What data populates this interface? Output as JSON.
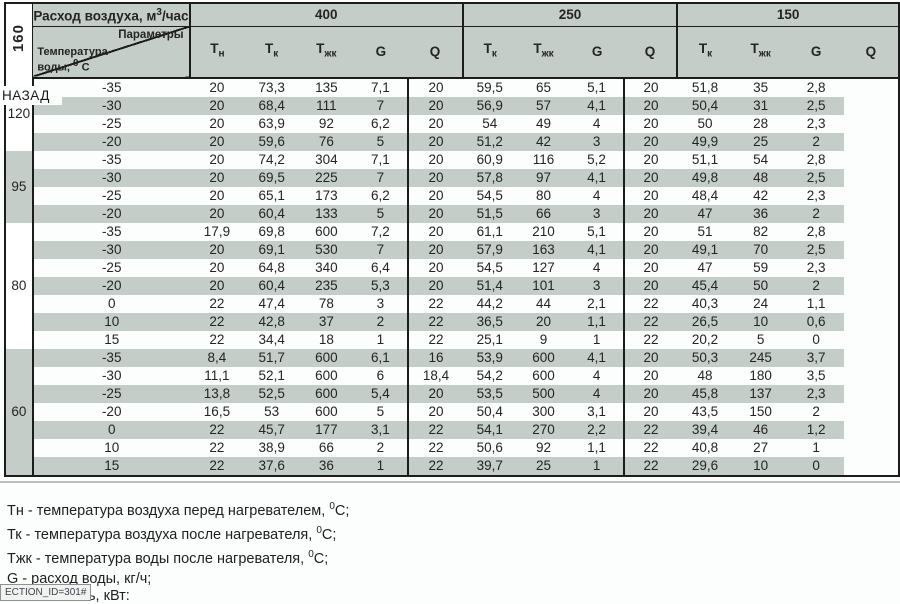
{
  "back_link": "НАЗАД",
  "table": {
    "row_band_label": "160",
    "airflow_label": {
      "before": "Расход воздуха, м",
      "sup": "3",
      "after": "/час"
    },
    "params_label": "Параметры",
    "water_temp_label": {
      "line1": "Температура",
      "line2_before": "воды, ",
      "line2_sup": "0",
      "line2_after": " С"
    },
    "colors": {
      "shade": "#c5cdc8",
      "border": "#1c1c1c"
    },
    "sections": [
      {
        "flow": "400",
        "columns": [
          {
            "m": "Т",
            "s": "н"
          },
          {
            "m": "Т",
            "s": "к"
          },
          {
            "m": "Т",
            "s": "жк"
          },
          {
            "m": "G",
            "s": ""
          },
          {
            "m": "Q",
            "s": ""
          }
        ]
      },
      {
        "flow": "250",
        "columns": [
          {
            "m": "Т",
            "s": "к"
          },
          {
            "m": "Т",
            "s": "жк"
          },
          {
            "m": "G",
            "s": ""
          },
          {
            "m": "Q",
            "s": ""
          }
        ]
      },
      {
        "flow": "150",
        "columns": [
          {
            "m": "Т",
            "s": "к"
          },
          {
            "m": "Т",
            "s": "жк"
          },
          {
            "m": "G",
            "s": ""
          },
          {
            "m": "Q",
            "s": ""
          }
        ]
      }
    ],
    "groups": [
      {
        "label": "120",
        "label_shaded": false,
        "rows": [
          {
            "shaded": false,
            "cells": [
              "-35",
              "20",
              "73,3",
              "135",
              "7,1",
              "20",
              "59,5",
              "65",
              "5,1",
              "20",
              "51,8",
              "35",
              "2,8"
            ]
          },
          {
            "shaded": true,
            "cells": [
              "-30",
              "20",
              "68,4",
              "111",
              "7",
              "20",
              "56,9",
              "57",
              "4,1",
              "20",
              "50,4",
              "31",
              "2,5"
            ]
          },
          {
            "shaded": false,
            "cells": [
              "-25",
              "20",
              "63,9",
              "92",
              "6,2",
              "20",
              "54",
              "49",
              "4",
              "20",
              "50",
              "28",
              "2,3"
            ]
          },
          {
            "shaded": true,
            "cells": [
              "-20",
              "20",
              "59,6",
              "76",
              "5",
              "20",
              "51,2",
              "42",
              "3",
              "20",
              "49,9",
              "25",
              "2"
            ]
          }
        ]
      },
      {
        "label": "95",
        "label_shaded": true,
        "rows": [
          {
            "shaded": false,
            "cells": [
              "-35",
              "20",
              "74,2",
              "304",
              "7,1",
              "20",
              "60,9",
              "116",
              "5,2",
              "20",
              "51,1",
              "54",
              "2,8"
            ]
          },
          {
            "shaded": true,
            "cells": [
              "-30",
              "20",
              "69,5",
              "225",
              "7",
              "20",
              "57,8",
              "97",
              "4,1",
              "20",
              "49,8",
              "48",
              "2,5"
            ]
          },
          {
            "shaded": false,
            "cells": [
              "-25",
              "20",
              "65,1",
              "173",
              "6,2",
              "20",
              "54,5",
              "80",
              "4",
              "20",
              "48,4",
              "42",
              "2,3"
            ]
          },
          {
            "shaded": true,
            "cells": [
              "-20",
              "20",
              "60,4",
              "133",
              "5",
              "20",
              "51,5",
              "66",
              "3",
              "20",
              "47",
              "36",
              "2"
            ]
          }
        ]
      },
      {
        "label": "80",
        "label_shaded": false,
        "rows": [
          {
            "shaded": false,
            "cells": [
              "-35",
              "17,9",
              "69,8",
              "600",
              "7,2",
              "20",
              "61,1",
              "210",
              "5,1",
              "20",
              "51",
              "82",
              "2,8"
            ]
          },
          {
            "shaded": true,
            "cells": [
              "-30",
              "20",
              "69,1",
              "530",
              "7",
              "20",
              "57,9",
              "163",
              "4,1",
              "20",
              "49,1",
              "70",
              "2,5"
            ]
          },
          {
            "shaded": false,
            "cells": [
              "-25",
              "20",
              "64,8",
              "340",
              "6,4",
              "20",
              "54,5",
              "127",
              "4",
              "20",
              "47",
              "59",
              "2,3"
            ]
          },
          {
            "shaded": true,
            "cells": [
              "-20",
              "20",
              "60,4",
              "235",
              "5,3",
              "20",
              "51,4",
              "101",
              "3",
              "20",
              "45,4",
              "50",
              "2"
            ]
          },
          {
            "shaded": false,
            "cells": [
              "0",
              "22",
              "47,4",
              "78",
              "3",
              "22",
              "44,2",
              "44",
              "2,1",
              "22",
              "40,3",
              "24",
              "1,1"
            ]
          },
          {
            "shaded": true,
            "cells": [
              "10",
              "22",
              "42,8",
              "37",
              "2",
              "22",
              "36,5",
              "20",
              "1,1",
              "22",
              "26,5",
              "10",
              "0,6"
            ]
          },
          {
            "shaded": false,
            "cells": [
              "15",
              "22",
              "34,4",
              "18",
              "1",
              "22",
              "25,1",
              "9",
              "1",
              "22",
              "20,2",
              "5",
              "0"
            ]
          }
        ]
      },
      {
        "label": "60",
        "label_shaded": true,
        "rows": [
          {
            "shaded": true,
            "cells": [
              "-35",
              "8,4",
              "51,7",
              "600",
              "6,1",
              "16",
              "53,9",
              "600",
              "4,1",
              "20",
              "50,3",
              "245",
              "3,7"
            ]
          },
          {
            "shaded": false,
            "cells": [
              "-30",
              "11,1",
              "52,1",
              "600",
              "6",
              "18,4",
              "54,2",
              "600",
              "4",
              "20",
              "48",
              "180",
              "3,5"
            ]
          },
          {
            "shaded": true,
            "cells": [
              "-25",
              "13,8",
              "52,5",
              "600",
              "5,4",
              "20",
              "53,5",
              "500",
              "4",
              "20",
              "45,8",
              "137",
              "2,3"
            ]
          },
          {
            "shaded": false,
            "cells": [
              "-20",
              "16,5",
              "53",
              "600",
              "5",
              "20",
              "50,4",
              "300",
              "3,1",
              "20",
              "43,5",
              "150",
              "2"
            ]
          },
          {
            "shaded": true,
            "cells": [
              "0",
              "22",
              "45,7",
              "177",
              "3,1",
              "22",
              "54,1",
              "270",
              "2,2",
              "22",
              "39,4",
              "46",
              "1,2"
            ]
          },
          {
            "shaded": false,
            "cells": [
              "10",
              "22",
              "38,9",
              "66",
              "2",
              "22",
              "50,6",
              "92",
              "1,1",
              "22",
              "40,8",
              "27",
              "1"
            ]
          },
          {
            "shaded": true,
            "cells": [
              "15",
              "22",
              "37,6",
              "36",
              "1",
              "22",
              "39,7",
              "25",
              "1",
              "22",
              "29,6",
              "10",
              "0"
            ]
          }
        ]
      }
    ]
  },
  "legend": [
    {
      "before": "Тн - температура воздуха перед нагревателем, ",
      "sup": "0",
      "after": "С;"
    },
    {
      "before": "Тк - температура воздуха после нагревателя, ",
      "sup": "0",
      "after": "С;"
    },
    {
      "before": "Тжк - температура воды после нагревателя, ",
      "sup": "0",
      "after": "С;"
    },
    {
      "before": "G - расход воды, кг/ч;",
      "sup": "",
      "after": ""
    }
  ],
  "legend_fragment": "ь, кВт:",
  "status_tooltip": "ECTION_ID=301#"
}
